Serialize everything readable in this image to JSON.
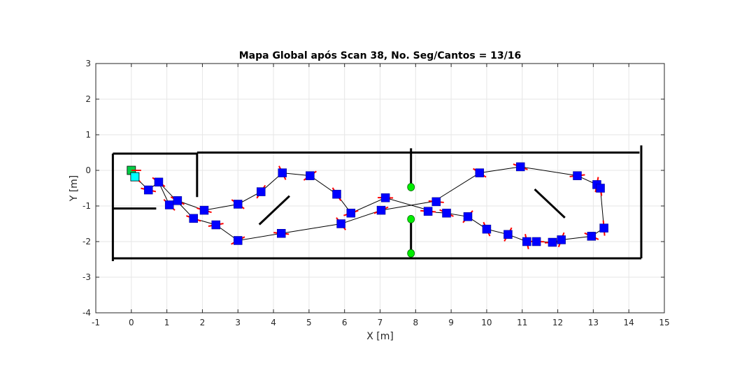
{
  "chart_data": {
    "type": "scatter",
    "title": "Mapa Global após Scan 38, No. Seg/Cantos = 13/16",
    "xlabel": "X [m]",
    "ylabel": "Y [m]",
    "xlim": [
      -1,
      15
    ],
    "ylim": [
      -4,
      3
    ],
    "xticks": [
      -1,
      0,
      1,
      2,
      3,
      4,
      5,
      6,
      7,
      8,
      9,
      10,
      11,
      12,
      13,
      14,
      15
    ],
    "yticks": [
      -4,
      -3,
      -2,
      -1,
      0,
      1,
      2,
      3
    ],
    "grid": true,
    "colors": {
      "walls": "#000000",
      "path": "#000000",
      "poses": "#0000ff",
      "heading": "#ff0000",
      "landmarks": "#00ee00",
      "start": "#00cc44",
      "current": "#00ffff",
      "grid": "#e6e6e6",
      "axes": "#262626"
    },
    "walls": [
      [
        [
          -0.52,
          0.47
        ],
        [
          1.85,
          0.47
        ]
      ],
      [
        [
          1.85,
          0.5
        ],
        [
          14.3,
          0.5
        ]
      ],
      [
        [
          1.85,
          0.5
        ],
        [
          1.85,
          -0.75
        ]
      ],
      [
        [
          -0.52,
          0.47
        ],
        [
          -0.52,
          -2.55
        ]
      ],
      [
        [
          -0.52,
          -2.47
        ],
        [
          14.35,
          -2.47
        ]
      ],
      [
        [
          14.35,
          0.7
        ],
        [
          14.35,
          -2.47
        ]
      ],
      [
        [
          -0.52,
          -1.07
        ],
        [
          0.7,
          -1.07
        ]
      ],
      [
        [
          7.87,
          0.62
        ],
        [
          7.87,
          -0.42
        ]
      ],
      [
        [
          7.87,
          -1.42
        ],
        [
          7.87,
          -2.32
        ]
      ],
      [
        [
          3.6,
          -1.52
        ],
        [
          4.45,
          -0.72
        ]
      ],
      [
        [
          11.35,
          -0.53
        ],
        [
          12.2,
          -1.33
        ]
      ]
    ],
    "path": [
      [
        0.0,
        0.0
      ],
      [
        0.1,
        -0.18
      ],
      [
        0.48,
        -0.55
      ],
      [
        0.77,
        -0.33
      ],
      [
        1.07,
        -0.97
      ],
      [
        1.3,
        -0.85
      ],
      [
        2.05,
        -1.12
      ],
      [
        3.0,
        -0.95
      ],
      [
        3.65,
        -0.6
      ],
      [
        4.25,
        -0.07
      ],
      [
        5.03,
        -0.15
      ],
      [
        5.78,
        -0.67
      ],
      [
        6.18,
        -1.2
      ],
      [
        7.15,
        -0.77
      ],
      [
        8.58,
        -1.18
      ],
      [
        8.87,
        -1.2
      ],
      [
        9.47,
        -1.3
      ],
      [
        10.0,
        -1.65
      ],
      [
        10.6,
        -1.8
      ],
      [
        11.13,
        -2.0
      ],
      [
        11.4,
        -2.0
      ],
      [
        11.85,
        -2.02
      ],
      [
        12.1,
        -1.95
      ],
      [
        12.95,
        -1.85
      ],
      [
        13.3,
        -1.62
      ],
      [
        13.2,
        -0.5
      ],
      [
        13.1,
        -0.4
      ],
      [
        12.55,
        -0.15
      ],
      [
        10.95,
        0.1
      ],
      [
        9.8,
        -0.07
      ],
      [
        8.52,
        -0.87
      ],
      [
        7.03,
        -1.12
      ],
      [
        5.9,
        -1.5
      ],
      [
        4.22,
        -1.77
      ],
      [
        3.0,
        -1.97
      ],
      [
        2.38,
        -1.53
      ],
      [
        1.75,
        -1.35
      ],
      [
        0.77,
        -0.33
      ]
    ],
    "poses": [
      [
        0.1,
        -0.18
      ],
      [
        0.48,
        -0.55
      ],
      [
        0.77,
        -0.33
      ],
      [
        1.07,
        -0.97
      ],
      [
        1.3,
        -0.85
      ],
      [
        1.75,
        -1.35
      ],
      [
        2.05,
        -1.12
      ],
      [
        2.38,
        -1.53
      ],
      [
        3.0,
        -0.95
      ],
      [
        3.0,
        -1.97
      ],
      [
        3.65,
        -0.6
      ],
      [
        4.25,
        -0.07
      ],
      [
        4.22,
        -1.77
      ],
      [
        5.03,
        -0.15
      ],
      [
        5.78,
        -0.67
      ],
      [
        5.9,
        -1.5
      ],
      [
        6.18,
        -1.2
      ],
      [
        7.03,
        -1.12
      ],
      [
        7.15,
        -0.77
      ],
      [
        8.35,
        -1.15
      ],
      [
        8.58,
        -0.88
      ],
      [
        8.87,
        -1.2
      ],
      [
        9.47,
        -1.3
      ],
      [
        9.8,
        -0.07
      ],
      [
        10.0,
        -1.65
      ],
      [
        10.6,
        -1.8
      ],
      [
        10.95,
        0.1
      ],
      [
        11.13,
        -2.0
      ],
      [
        11.4,
        -2.0
      ],
      [
        11.85,
        -2.02
      ],
      [
        12.1,
        -1.95
      ],
      [
        12.55,
        -0.15
      ],
      [
        12.95,
        -1.85
      ],
      [
        13.1,
        -0.4
      ],
      [
        13.2,
        -0.5
      ],
      [
        13.3,
        -1.62
      ]
    ],
    "landmarks": [
      [
        7.87,
        -0.47
      ],
      [
        7.87,
        -1.37
      ],
      [
        7.87,
        -2.33
      ]
    ],
    "start": [
      0.0,
      0.0
    ],
    "current": [
      0.1,
      -0.18
    ]
  }
}
